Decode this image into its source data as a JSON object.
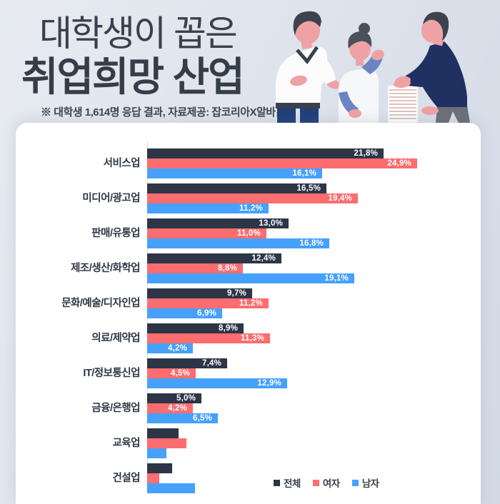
{
  "header": {
    "title_line1": "대학생이 꼽은",
    "title_line2": "취업희망 산업",
    "subtitle": "※ 대학생 1,614명 응답 결과,  자료제공: 잡코리아X알바몬",
    "illustration": "three-people-reviewing-document-stack"
  },
  "colors": {
    "background": "#dee3ec",
    "card": "#ffffff",
    "title_text": "#39414d",
    "category_text": "#2f3846",
    "value_text": "#ffffff",
    "axis_line": "#d8dce3",
    "bar_total": "#2d3547",
    "bar_female": "#fc6d70",
    "bar_male": "#45a1fc"
  },
  "chart_data": {
    "type": "bar",
    "orientation": "horizontal",
    "unit": "%",
    "title": "대학생이 꼽은 취업희망 산업",
    "categories": [
      "서비스업",
      "미디어/광고업",
      "판매/유통업",
      "제조/생산/화학업",
      "문화/예술/디자인업",
      "의료/제약업",
      "IT/정보통신업",
      "금융/은행업",
      "교육업",
      "건설업"
    ],
    "series": [
      {
        "name": "전체",
        "color": "#2d3547",
        "values": [
          21.8,
          16.5,
          13.0,
          12.4,
          9.7,
          8.9,
          7.4,
          5.0,
          2.9,
          2.3
        ],
        "labels": [
          "21,8%",
          "16,5%",
          "13,0%",
          "12,4%",
          "9,7%",
          "8,9%",
          "7,4%",
          "5,0%",
          "",
          ""
        ]
      },
      {
        "name": "여자",
        "color": "#fc6d70",
        "values": [
          24.9,
          19.4,
          11.0,
          8.8,
          11.2,
          11.3,
          4.5,
          4.2,
          3.6,
          1.1
        ],
        "labels": [
          "24,9%",
          "19,4%",
          "11,0%",
          "8,8%",
          "11,2%",
          "11,3%",
          "4,5%",
          "4,2%",
          "",
          ""
        ]
      },
      {
        "name": "남자",
        "color": "#45a1fc",
        "values": [
          16.1,
          11.2,
          16.8,
          19.1,
          6.9,
          4.2,
          12.9,
          6.5,
          1.8,
          4.4
        ],
        "labels": [
          "16,1%",
          "11,2%",
          "16,8%",
          "19,1%",
          "6,9%",
          "4,2%",
          "12,9%",
          "6,5%",
          "",
          ""
        ]
      }
    ],
    "legend": [
      "전체",
      "여자",
      "남자"
    ],
    "legend_position": "bottom-right",
    "xlim": [
      0,
      26
    ],
    "grid": false,
    "value_labels_inside_bars": true
  }
}
